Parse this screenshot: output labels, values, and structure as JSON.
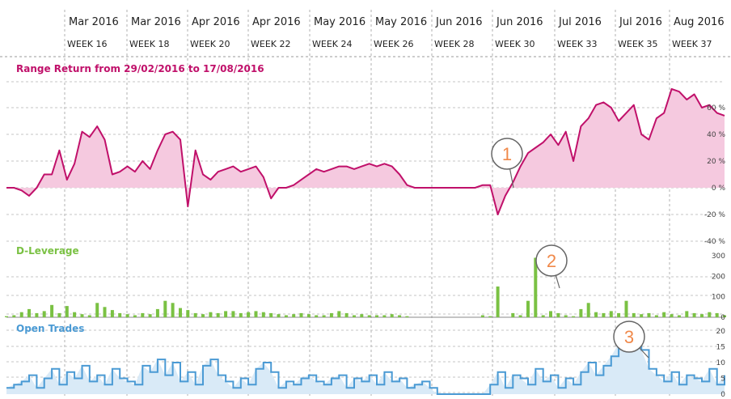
{
  "header": {
    "months": [
      "Mar 2016",
      "Mar 2016",
      "Apr 2016",
      "Apr 2016",
      "May 2016",
      "May 2016",
      "Jun 2016",
      "Jun 2016",
      "Jul 2016",
      "Jul 2016",
      "Aug 2016"
    ],
    "weeks": [
      "WEEK 16",
      "WEEK 18",
      "WEEK 20",
      "WEEK 22",
      "WEEK 24",
      "WEEK 26",
      "WEEK 28",
      "WEEK 30",
      "WEEK 33",
      "WEEK 35",
      "WEEK 37"
    ]
  },
  "colors": {
    "return": "#c0106a",
    "return_fill": "#f5c9df",
    "leverage": "#7ac143",
    "trades": "#4a9ad4",
    "trades_fill": "#d9eaf7",
    "callout": "#f0894a"
  },
  "callouts": [
    "1",
    "2",
    "3"
  ],
  "chart_data": [
    {
      "type": "area",
      "title": "Range Return from 29/02/2016 to 17/08/2016",
      "y_ticks": [
        "60 %",
        "40 %",
        "20 %",
        "0 %",
        "-20 %",
        "-40 %"
      ],
      "ylim": [
        -40,
        60
      ],
      "unit": "%",
      "series": [
        {
          "values": [
            [
              0,
              0
            ],
            [
              1,
              0
            ],
            [
              2,
              -2
            ],
            [
              3,
              -6
            ],
            [
              4,
              0
            ],
            [
              5,
              10
            ],
            [
              6,
              10
            ],
            [
              7,
              28
            ],
            [
              8,
              6
            ],
            [
              9,
              18
            ],
            [
              10,
              42
            ],
            [
              11,
              38
            ],
            [
              12,
              46
            ],
            [
              13,
              36
            ],
            [
              14,
              10
            ],
            [
              15,
              12
            ],
            [
              16,
              16
            ],
            [
              17,
              12
            ],
            [
              18,
              20
            ],
            [
              19,
              14
            ],
            [
              20,
              28
            ],
            [
              21,
              40
            ],
            [
              22,
              42
            ],
            [
              23,
              36
            ],
            [
              24,
              -14
            ],
            [
              25,
              28
            ],
            [
              26,
              10
            ],
            [
              27,
              6
            ],
            [
              28,
              12
            ],
            [
              29,
              14
            ],
            [
              30,
              16
            ],
            [
              31,
              12
            ],
            [
              32,
              14
            ],
            [
              33,
              16
            ],
            [
              34,
              8
            ],
            [
              35,
              -8
            ],
            [
              36,
              0
            ],
            [
              37,
              0
            ],
            [
              38,
              2
            ],
            [
              39,
              6
            ],
            [
              40,
              10
            ],
            [
              41,
              14
            ],
            [
              42,
              12
            ],
            [
              43,
              14
            ],
            [
              44,
              16
            ],
            [
              45,
              16
            ],
            [
              46,
              14
            ],
            [
              47,
              16
            ],
            [
              48,
              18
            ],
            [
              49,
              16
            ],
            [
              50,
              18
            ],
            [
              51,
              16
            ],
            [
              52,
              10
            ],
            [
              53,
              2
            ],
            [
              54,
              0
            ],
            [
              55,
              0
            ],
            [
              56,
              0
            ],
            [
              57,
              0
            ],
            [
              58,
              0
            ],
            [
              59,
              0
            ],
            [
              60,
              0
            ],
            [
              61,
              0
            ],
            [
              62,
              0
            ],
            [
              63,
              2
            ],
            [
              64,
              2
            ],
            [
              65,
              -20
            ],
            [
              66,
              -6
            ],
            [
              67,
              4
            ],
            [
              68,
              16
            ],
            [
              69,
              26
            ],
            [
              70,
              30
            ],
            [
              71,
              34
            ],
            [
              72,
              40
            ],
            [
              73,
              32
            ],
            [
              74,
              42
            ],
            [
              75,
              20
            ],
            [
              76,
              46
            ],
            [
              77,
              52
            ],
            [
              78,
              62
            ],
            [
              79,
              64
            ],
            [
              80,
              60
            ],
            [
              81,
              50
            ],
            [
              82,
              56
            ],
            [
              83,
              62
            ],
            [
              84,
              40
            ],
            [
              85,
              36
            ],
            [
              86,
              52
            ],
            [
              87,
              56
            ],
            [
              88,
              74
            ],
            [
              89,
              72
            ],
            [
              90,
              66
            ],
            [
              91,
              70
            ],
            [
              92,
              60
            ],
            [
              93,
              62
            ],
            [
              94,
              56
            ],
            [
              95,
              54
            ]
          ]
        }
      ]
    },
    {
      "type": "bar",
      "title": "D-Leverage",
      "y_ticks": [
        "300",
        "200",
        "100",
        "0"
      ],
      "ylim": [
        0,
        320
      ],
      "series": [
        {
          "values": [
            [
              0,
              5
            ],
            [
              1,
              10
            ],
            [
              2,
              25
            ],
            [
              3,
              40
            ],
            [
              4,
              20
            ],
            [
              5,
              30
            ],
            [
              6,
              60
            ],
            [
              7,
              20
            ],
            [
              8,
              55
            ],
            [
              9,
              25
            ],
            [
              10,
              15
            ],
            [
              11,
              10
            ],
            [
              12,
              70
            ],
            [
              13,
              50
            ],
            [
              14,
              35
            ],
            [
              15,
              20
            ],
            [
              16,
              15
            ],
            [
              17,
              10
            ],
            [
              18,
              20
            ],
            [
              19,
              15
            ],
            [
              20,
              40
            ],
            [
              21,
              80
            ],
            [
              22,
              70
            ],
            [
              23,
              45
            ],
            [
              24,
              35
            ],
            [
              25,
              20
            ],
            [
              26,
              15
            ],
            [
              27,
              25
            ],
            [
              28,
              20
            ],
            [
              29,
              30
            ],
            [
              30,
              30
            ],
            [
              31,
              20
            ],
            [
              32,
              25
            ],
            [
              33,
              30
            ],
            [
              34,
              25
            ],
            [
              35,
              20
            ],
            [
              36,
              15
            ],
            [
              37,
              10
            ],
            [
              38,
              15
            ],
            [
              39,
              20
            ],
            [
              40,
              15
            ],
            [
              41,
              10
            ],
            [
              42,
              10
            ],
            [
              43,
              20
            ],
            [
              44,
              30
            ],
            [
              45,
              20
            ],
            [
              46,
              10
            ],
            [
              47,
              15
            ],
            [
              48,
              10
            ],
            [
              49,
              10
            ],
            [
              50,
              10
            ],
            [
              51,
              15
            ],
            [
              52,
              10
            ],
            [
              53,
              5
            ],
            [
              54,
              0
            ],
            [
              55,
              0
            ],
            [
              56,
              0
            ],
            [
              57,
              0
            ],
            [
              58,
              0
            ],
            [
              59,
              0
            ],
            [
              60,
              0
            ],
            [
              61,
              0
            ],
            [
              62,
              0
            ],
            [
              63,
              10
            ],
            [
              64,
              5
            ],
            [
              65,
              150
            ],
            [
              66,
              0
            ],
            [
              67,
              20
            ],
            [
              68,
              10
            ],
            [
              69,
              80
            ],
            [
              70,
              290
            ],
            [
              71,
              10
            ],
            [
              72,
              30
            ],
            [
              73,
              20
            ],
            [
              74,
              10
            ],
            [
              75,
              5
            ],
            [
              76,
              40
            ],
            [
              77,
              70
            ],
            [
              78,
              25
            ],
            [
              79,
              20
            ],
            [
              80,
              30
            ],
            [
              81,
              20
            ],
            [
              82,
              80
            ],
            [
              83,
              20
            ],
            [
              84,
              15
            ],
            [
              85,
              20
            ],
            [
              86,
              10
            ],
            [
              87,
              25
            ],
            [
              88,
              15
            ],
            [
              89,
              10
            ],
            [
              90,
              30
            ],
            [
              91,
              20
            ],
            [
              92,
              15
            ],
            [
              93,
              25
            ],
            [
              94,
              20
            ],
            [
              95,
              10
            ]
          ]
        }
      ]
    },
    {
      "type": "area",
      "title": "Open Trades",
      "y_ticks": [
        "20",
        "15",
        "10",
        "5",
        "0"
      ],
      "ylim": [
        0,
        20
      ],
      "series": [
        {
          "values": [
            [
              0,
              2
            ],
            [
              1,
              3
            ],
            [
              2,
              4
            ],
            [
              3,
              6
            ],
            [
              4,
              2
            ],
            [
              5,
              5
            ],
            [
              6,
              8
            ],
            [
              7,
              3
            ],
            [
              8,
              7
            ],
            [
              9,
              5
            ],
            [
              10,
              9
            ],
            [
              11,
              4
            ],
            [
              12,
              6
            ],
            [
              13,
              3
            ],
            [
              14,
              8
            ],
            [
              15,
              5
            ],
            [
              16,
              4
            ],
            [
              17,
              3
            ],
            [
              18,
              9
            ],
            [
              19,
              7
            ],
            [
              20,
              11
            ],
            [
              21,
              6
            ],
            [
              22,
              10
            ],
            [
              23,
              4
            ],
            [
              24,
              7
            ],
            [
              25,
              3
            ],
            [
              26,
              9
            ],
            [
              27,
              11
            ],
            [
              28,
              6
            ],
            [
              29,
              4
            ],
            [
              30,
              2
            ],
            [
              31,
              5
            ],
            [
              32,
              3
            ],
            [
              33,
              8
            ],
            [
              34,
              10
            ],
            [
              35,
              7
            ],
            [
              36,
              2
            ],
            [
              37,
              4
            ],
            [
              38,
              3
            ],
            [
              39,
              5
            ],
            [
              40,
              6
            ],
            [
              41,
              4
            ],
            [
              42,
              3
            ],
            [
              43,
              5
            ],
            [
              44,
              6
            ],
            [
              45,
              2
            ],
            [
              46,
              5
            ],
            [
              47,
              4
            ],
            [
              48,
              6
            ],
            [
              49,
              3
            ],
            [
              50,
              7
            ],
            [
              51,
              4
            ],
            [
              52,
              5
            ],
            [
              53,
              2
            ],
            [
              54,
              3
            ],
            [
              55,
              4
            ],
            [
              56,
              2
            ],
            [
              57,
              0
            ],
            [
              58,
              0
            ],
            [
              59,
              0
            ],
            [
              60,
              0
            ],
            [
              61,
              0
            ],
            [
              62,
              0
            ],
            [
              63,
              0
            ],
            [
              64,
              3
            ],
            [
              65,
              7
            ],
            [
              66,
              2
            ],
            [
              67,
              6
            ],
            [
              68,
              5
            ],
            [
              69,
              3
            ],
            [
              70,
              8
            ],
            [
              71,
              4
            ],
            [
              72,
              6
            ],
            [
              73,
              2
            ],
            [
              74,
              5
            ],
            [
              75,
              3
            ],
            [
              76,
              7
            ],
            [
              77,
              10
            ],
            [
              78,
              6
            ],
            [
              79,
              9
            ],
            [
              80,
              12
            ],
            [
              81,
              16
            ],
            [
              82,
              18
            ],
            [
              83,
              20
            ],
            [
              84,
              14
            ],
            [
              85,
              8
            ],
            [
              86,
              6
            ],
            [
              87,
              4
            ],
            [
              88,
              7
            ],
            [
              89,
              3
            ],
            [
              90,
              6
            ],
            [
              91,
              5
            ],
            [
              92,
              4
            ],
            [
              93,
              8
            ],
            [
              94,
              3
            ],
            [
              95,
              6
            ]
          ]
        }
      ]
    }
  ]
}
